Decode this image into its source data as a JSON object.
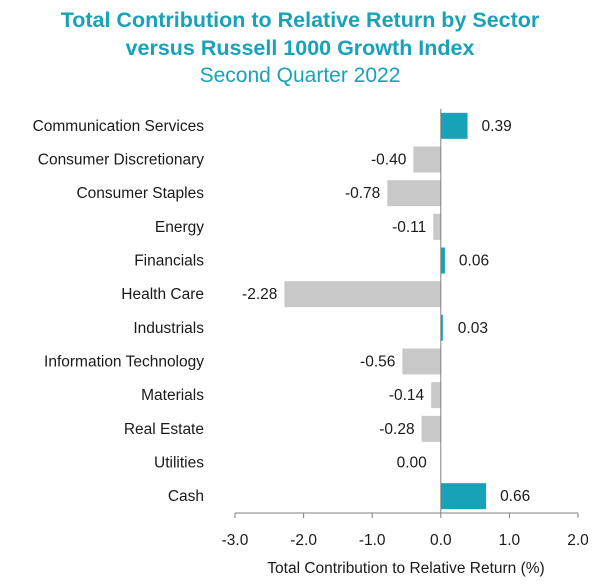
{
  "chart_data": {
    "type": "bar",
    "orientation": "horizontal",
    "title_lines": [
      "Total Contribution to Relative Return by Sector",
      "versus Russell 1000 Growth Index"
    ],
    "subtitle": "Second Quarter 2022",
    "xlabel": "Total Contribution to Relative Return (%)",
    "ylabel": "",
    "xlim": [
      -3.0,
      2.0
    ],
    "ticks": [
      -3.0,
      -2.0,
      -1.0,
      0.0,
      1.0,
      2.0
    ],
    "tick_labels": [
      "-3.0",
      "-2.0",
      "-1.0",
      "0.0",
      "1.0",
      "2.0"
    ],
    "grid": false,
    "legend": "none",
    "categories": [
      "Communication Services",
      "Consumer Discretionary",
      "Consumer Staples",
      "Energy",
      "Financials",
      "Health Care",
      "Industrials",
      "Information Technology",
      "Materials",
      "Real Estate",
      "Utilities",
      "Cash"
    ],
    "values": [
      0.39,
      -0.4,
      -0.78,
      -0.11,
      0.06,
      -2.28,
      0.03,
      -0.56,
      -0.14,
      -0.28,
      0.0,
      0.66
    ],
    "value_labels": [
      "0.39",
      "-0.40",
      "-0.78",
      "-0.11",
      "0.06",
      "-2.28",
      "0.03",
      "-0.56",
      "-0.14",
      "-0.28",
      "0.00",
      "0.66"
    ],
    "colors": {
      "positive": "#17a2b8",
      "negative": "#c8c8c8",
      "title": "#17a2b8",
      "axis": "#808080"
    }
  }
}
